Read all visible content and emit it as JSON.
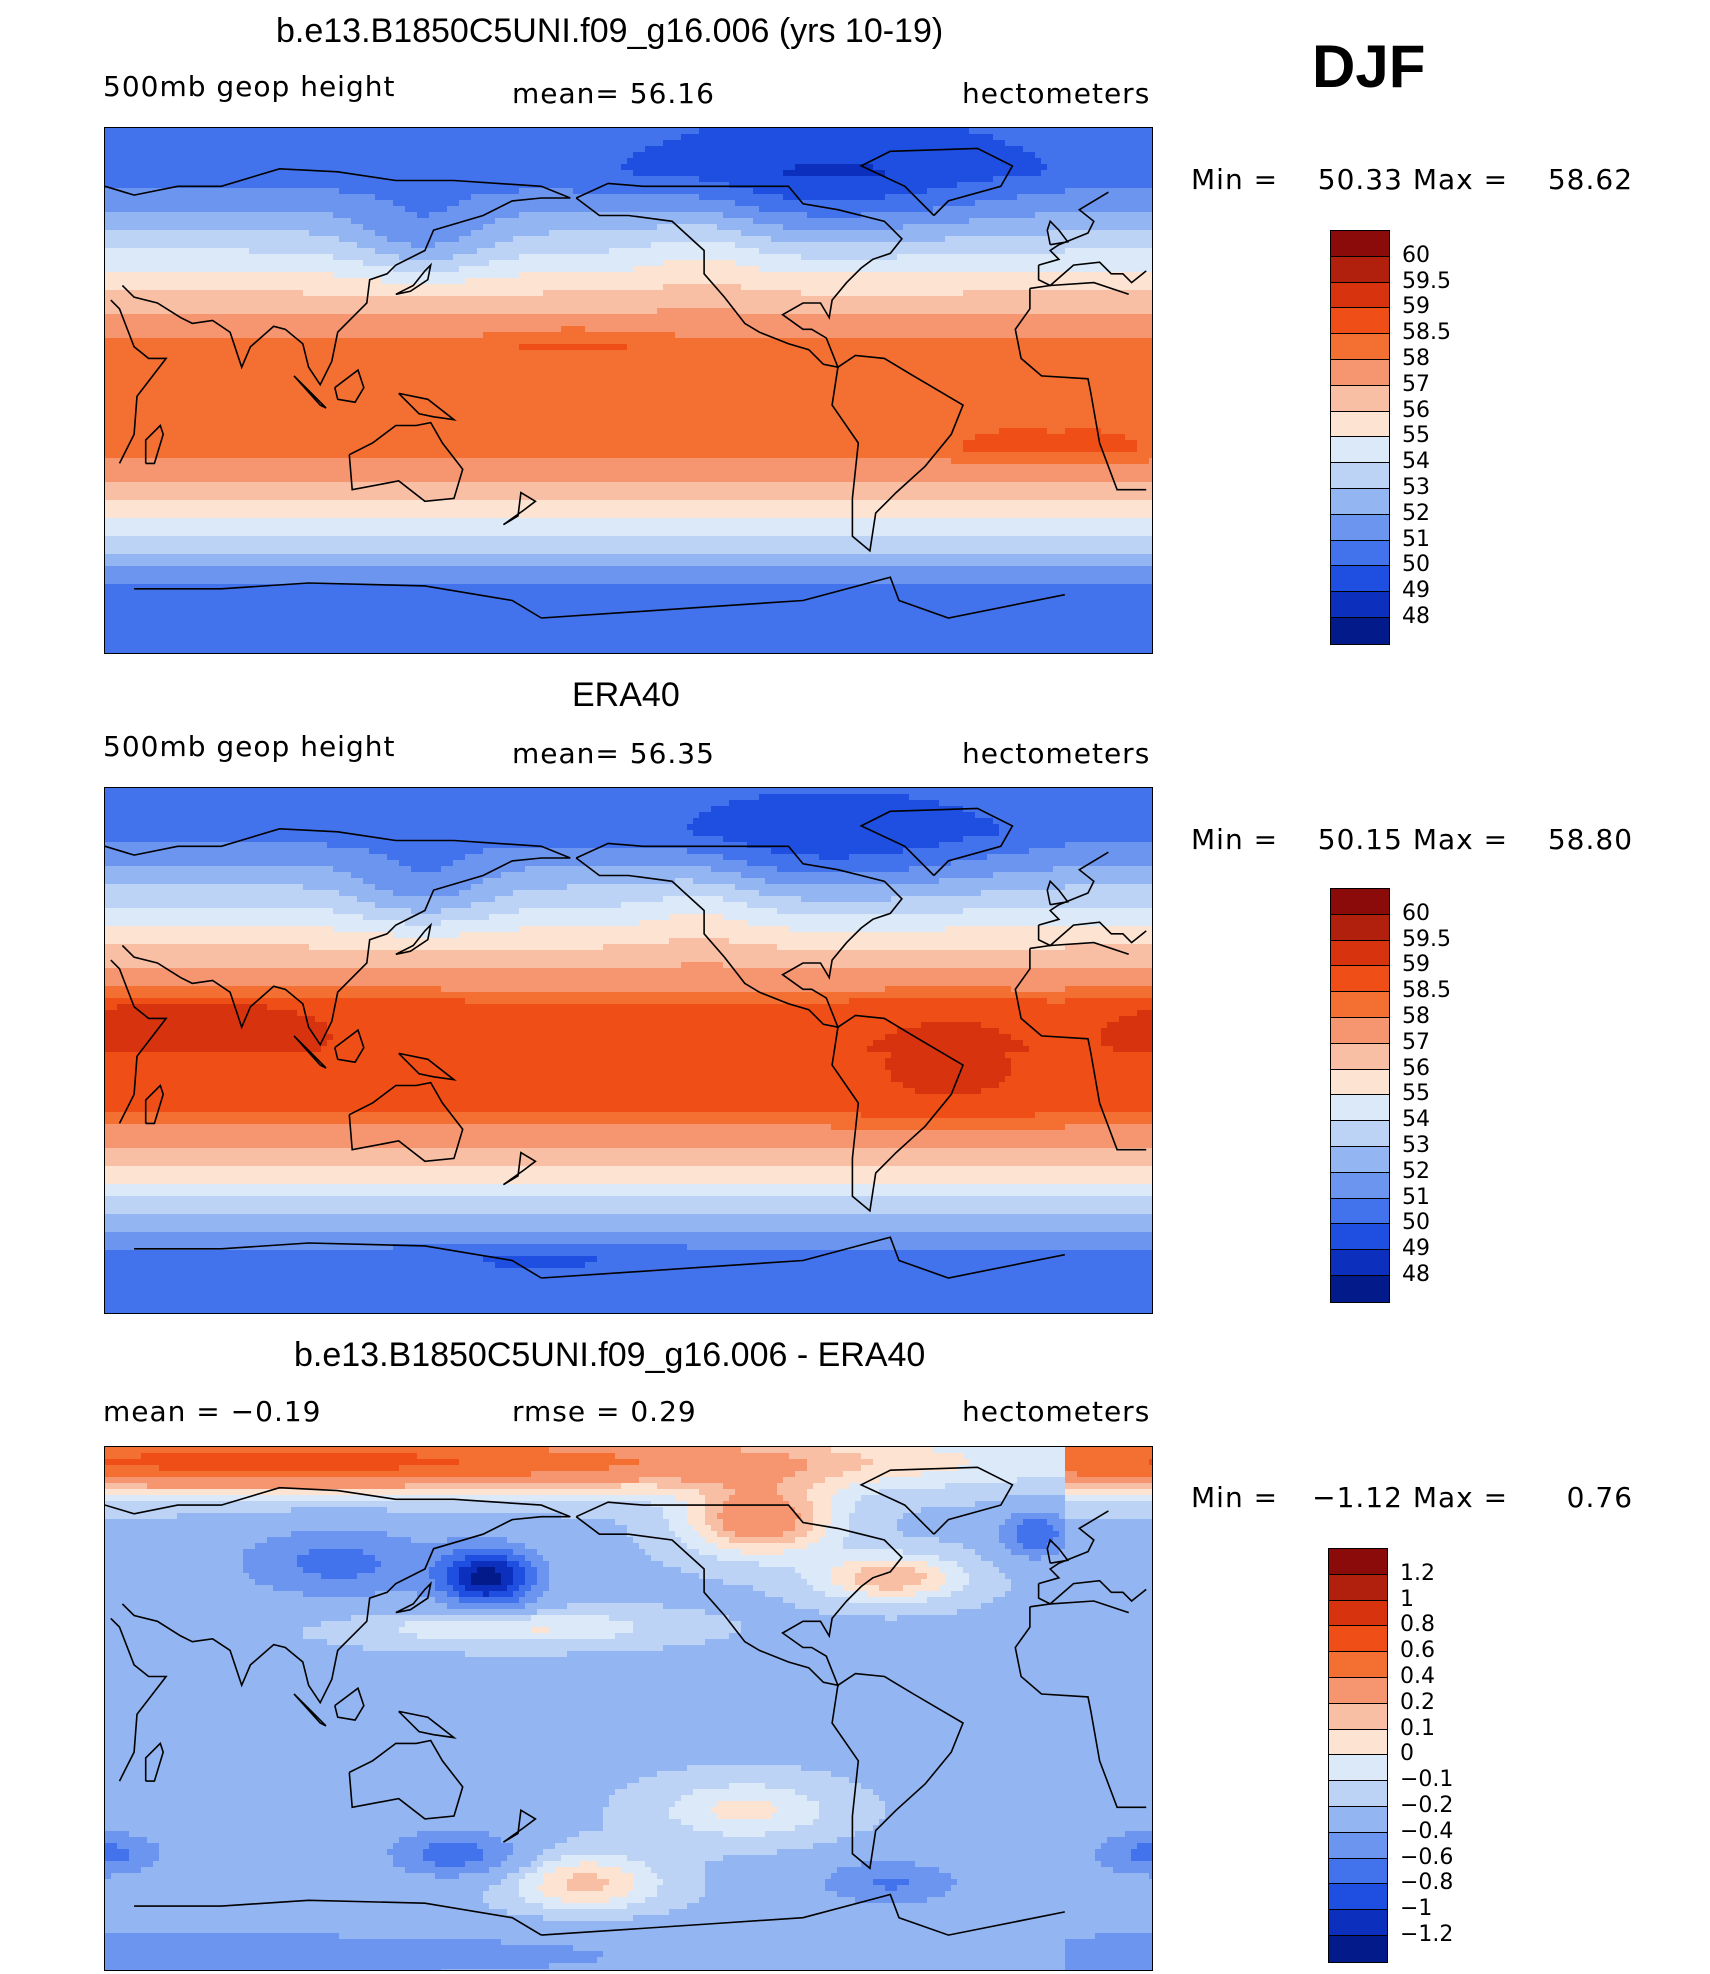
{
  "season": "DJF",
  "panels": [
    {
      "title": "b.e13.B1850C5UNI.f09_g16.006 (yrs 10-19)",
      "left_label": "500mb geop height",
      "center_label": "mean=  56.16",
      "units": "hectometers",
      "min_label": "Min =",
      "min_value": "50.33",
      "max_label": "Max =",
      "max_value": "58.62",
      "field": "model"
    },
    {
      "title": "ERA40",
      "left_label": "500mb geop height",
      "center_label": "mean=  56.35",
      "units": "hectometers",
      "min_label": "Min =",
      "min_value": "50.15",
      "max_label": "Max =",
      "max_value": "58.80",
      "field": "obs"
    },
    {
      "title": "b.e13.B1850C5UNI.f09_g16.006 - ERA40",
      "left_label": "mean =   −0.19",
      "center_label": "rmse =    0.29",
      "units": "hectometers",
      "min_label": "Min =",
      "min_value": "−1.12",
      "max_label": "Max =",
      "max_value": "0.76",
      "field": "diff"
    }
  ],
  "colorbars": {
    "abs": {
      "labels": [
        "60",
        "59.5",
        "59",
        "58.5",
        "58",
        "57",
        "56",
        "55",
        "54",
        "53",
        "52",
        "51",
        "50",
        "49",
        "48"
      ],
      "colors": [
        "#8b0a0a",
        "#b0200c",
        "#d8330f",
        "#f04e17",
        "#f36f32",
        "#f69670",
        "#f9bfa4",
        "#fde4d2",
        "#dbe9f8",
        "#bcd3f6",
        "#93b6f2",
        "#6b95ef",
        "#4272ec",
        "#1f4fe0",
        "#0d2fbd",
        "#031a8a"
      ]
    },
    "diff": {
      "labels": [
        "1.2",
        "1",
        "0.8",
        "0.6",
        "0.4",
        "0.2",
        "0.1",
        "0",
        "−0.1",
        "−0.2",
        "−0.4",
        "−0.6",
        "−0.8",
        "−1",
        "−1.2"
      ],
      "colors": [
        "#8b0a0a",
        "#b0200c",
        "#d8330f",
        "#f04e17",
        "#f36f32",
        "#f69670",
        "#f9bfa4",
        "#fde4d2",
        "#dbe9f8",
        "#bcd3f6",
        "#93b6f2",
        "#6b95ef",
        "#4272ec",
        "#1f4fe0",
        "#0d2fbd",
        "#031a8a"
      ]
    }
  }
}
